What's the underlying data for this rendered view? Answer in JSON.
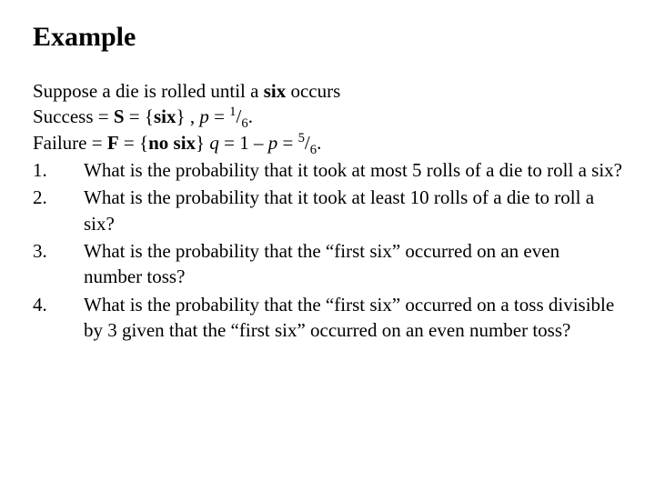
{
  "title": "Example",
  "intro_html": "Suppose a die is rolled until a <b>six</b> occurs",
  "success_html": "Success = <b>S</b> = {<b>six</b>} , <span class=\"ital\">p</span> = <span class=\"sup\">1</span>/<span class=\"sub\">6</span>.",
  "failure_html": "Failure = <b>F</b> = {<b>no six</b>} <span class=\"ital\">q</span> = 1 – <span class=\"ital\">p</span> = <span class=\"sup\">5</span>/<span class=\"sub\">6</span>.",
  "items": [
    {
      "num": "1.",
      "text": "What is the probability that it took at most 5 rolls of a die to roll a six?"
    },
    {
      "num": "2.",
      "text": "What is the probability that it took at least 10 rolls of a die to roll a six?"
    },
    {
      "num": "3.",
      "text": "What is the probability that the “first six” occurred on an even number toss?"
    },
    {
      "num": "4.",
      "text": "What is the probability that the “first six” occurred on a toss divisible by 3 given that the “first six” occurred on an even number toss?"
    }
  ]
}
